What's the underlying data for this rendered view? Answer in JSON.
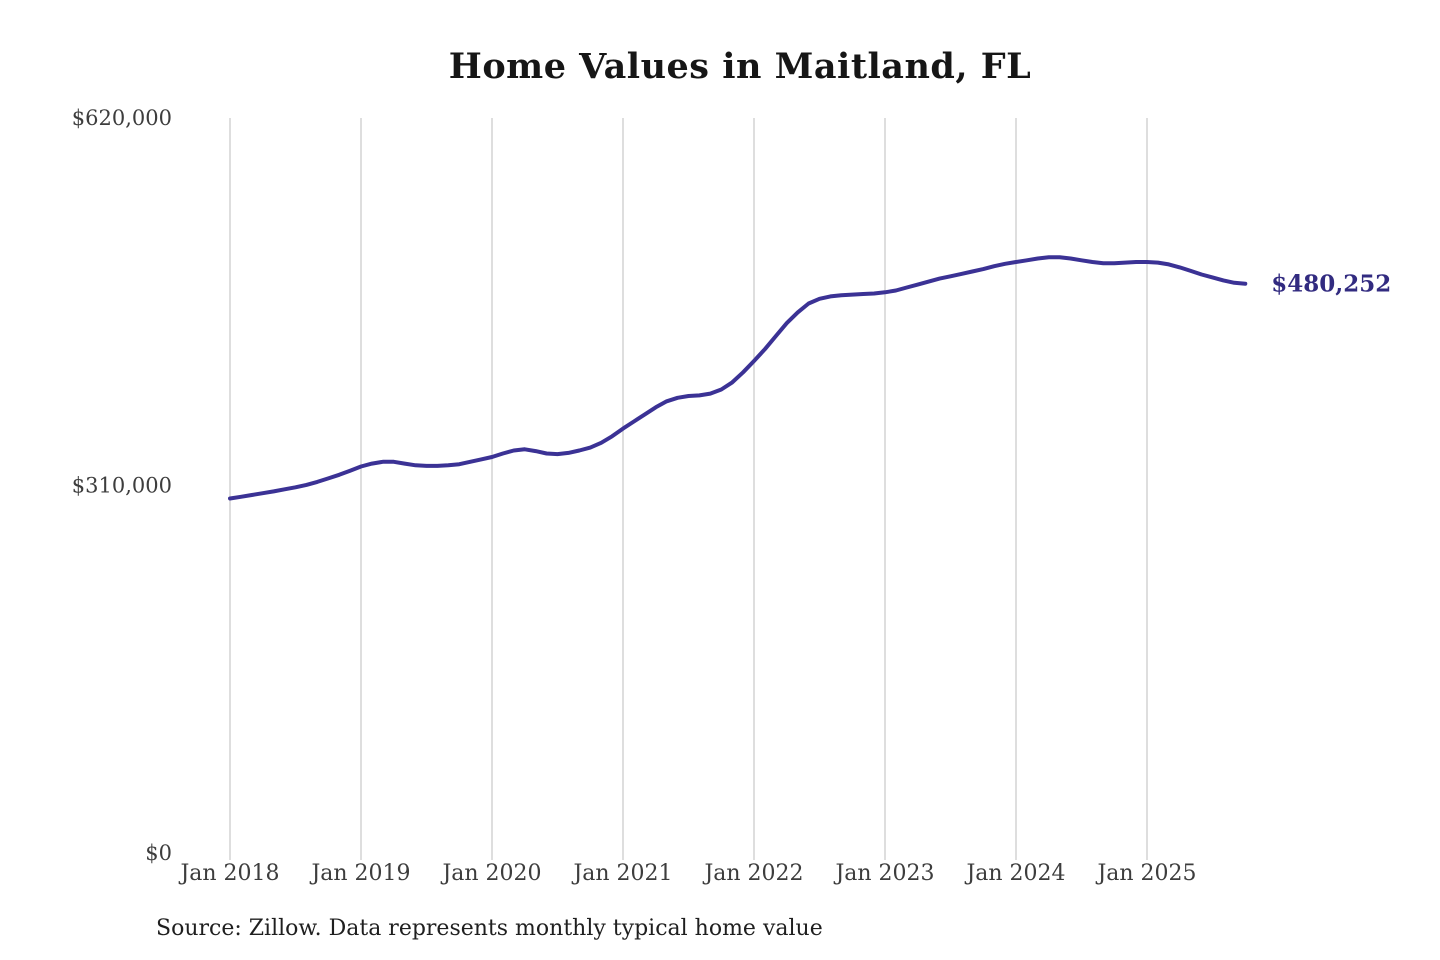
{
  "page": {
    "background": "#ffffff"
  },
  "chart_data": {
    "type": "line",
    "title": "Home Values in Maitland, FL",
    "xlabel": "",
    "ylabel": "",
    "ylim": [
      0,
      620000
    ],
    "grid": "vertical-only",
    "legend": "none",
    "end_label": "$480,252",
    "end_value": 480252,
    "x_tick_labels": [
      "Jan 2018",
      "Jan 2019",
      "Jan 2020",
      "Jan 2021",
      "Jan 2022",
      "Jan 2023",
      "Jan 2024",
      "Jan 2025"
    ],
    "y_ticks": [
      {
        "label": "$620,000",
        "value": 620000
      },
      {
        "label": "$310,000",
        "value": 310000
      },
      {
        "label": "$0",
        "value": 0
      }
    ],
    "series": [
      {
        "name": "Monthly typical home value",
        "months": [
          "2018-01",
          "2018-02",
          "2018-03",
          "2018-04",
          "2018-05",
          "2018-06",
          "2018-07",
          "2018-08",
          "2018-09",
          "2018-10",
          "2018-11",
          "2018-12",
          "2019-01",
          "2019-02",
          "2019-03",
          "2019-04",
          "2019-05",
          "2019-06",
          "2019-07",
          "2019-08",
          "2019-09",
          "2019-10",
          "2019-11",
          "2019-12",
          "2020-01",
          "2020-02",
          "2020-03",
          "2020-04",
          "2020-05",
          "2020-06",
          "2020-07",
          "2020-08",
          "2020-09",
          "2020-10",
          "2020-11",
          "2020-12",
          "2021-01",
          "2021-02",
          "2021-03",
          "2021-04",
          "2021-05",
          "2021-06",
          "2021-07",
          "2021-08",
          "2021-09",
          "2021-10",
          "2021-11",
          "2021-12",
          "2022-01",
          "2022-02",
          "2022-03",
          "2022-04",
          "2022-05",
          "2022-06",
          "2022-07",
          "2022-08",
          "2022-09",
          "2022-10",
          "2022-11",
          "2022-12",
          "2023-01",
          "2023-02",
          "2023-03",
          "2023-04",
          "2023-05",
          "2023-06",
          "2023-07",
          "2023-08",
          "2023-09",
          "2023-10",
          "2023-11",
          "2023-12",
          "2024-01",
          "2024-02",
          "2024-03",
          "2024-04",
          "2024-05",
          "2024-06",
          "2024-07",
          "2024-08",
          "2024-09",
          "2024-10",
          "2024-11",
          "2024-12",
          "2025-01",
          "2025-02",
          "2025-03",
          "2025-04",
          "2025-05",
          "2025-06",
          "2025-07",
          "2025-08",
          "2025-09",
          "2025-10"
        ],
        "values": [
          299000,
          300500,
          302000,
          303500,
          305000,
          306800,
          308500,
          310500,
          313000,
          316000,
          319000,
          322500,
          326000,
          328500,
          330000,
          330000,
          328500,
          327000,
          326500,
          326500,
          327000,
          328000,
          330000,
          332000,
          334000,
          337000,
          339500,
          340500,
          339000,
          337000,
          336500,
          337500,
          339500,
          342000,
          346000,
          351500,
          358000,
          364000,
          370000,
          376000,
          381000,
          384000,
          385500,
          386000,
          387500,
          391000,
          397000,
          405500,
          415000,
          425000,
          436000,
          447000,
          456000,
          463500,
          467500,
          469500,
          470500,
          471000,
          471500,
          472000,
          473000,
          474500,
          477000,
          479500,
          482000,
          484500,
          486500,
          488500,
          490500,
          492500,
          495000,
          497000,
          498500,
          500000,
          501500,
          502500,
          502500,
          501500,
          500000,
          498500,
          497500,
          497500,
          498000,
          498500,
          498500,
          498000,
          496500,
          494000,
          491000,
          488000,
          485500,
          483000,
          481000,
          480252
        ]
      }
    ],
    "colors": {
      "line": "#3b3295",
      "end_label": "#322b80",
      "grid": "#cccccc",
      "tick_text": "#3d3d3d",
      "title_text": "#161616",
      "source_text": "#1f1f1f"
    }
  },
  "notes": {
    "source": "Source: Zillow. Data represents monthly typical home value"
  }
}
